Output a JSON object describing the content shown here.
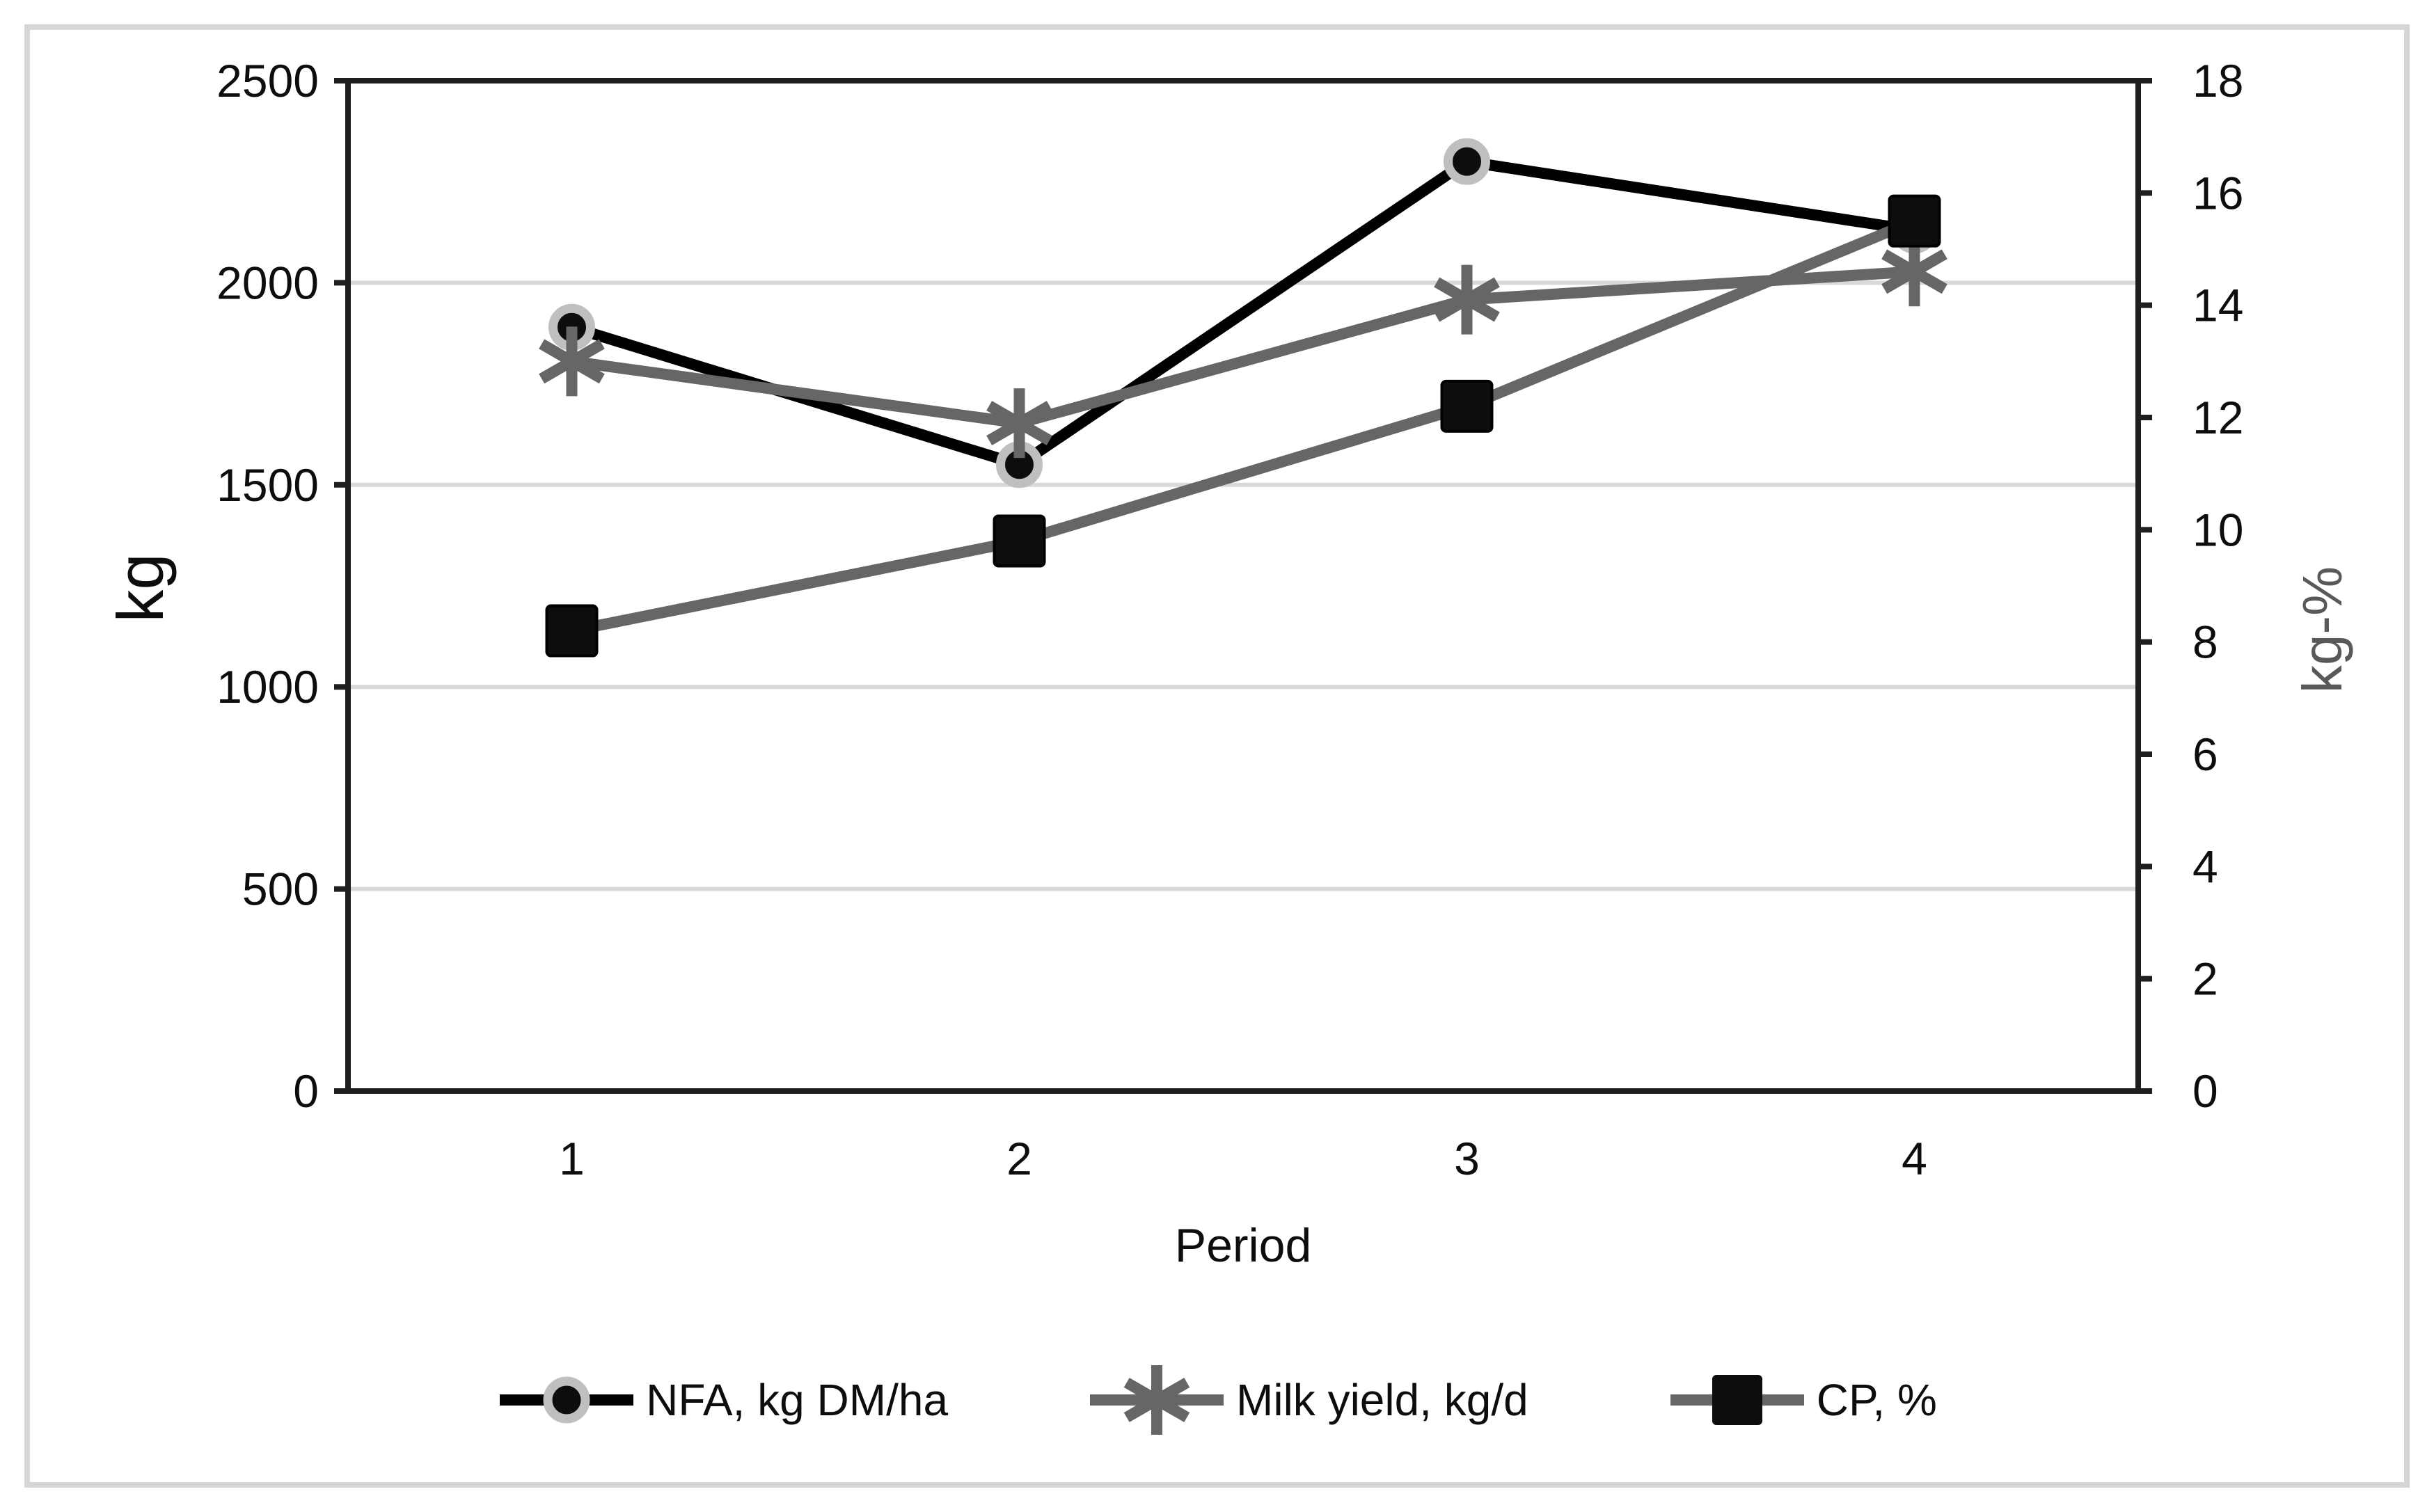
{
  "figure": {
    "background": "#ffffff",
    "outer_border_color": "#d6d6d6",
    "frame_color": "#1f1f1f",
    "gridline_color": "#d9d9d9",
    "text_color": "#0d0d0d",
    "secondary_text_color": "#595959"
  },
  "chart_data": {
    "type": "line",
    "title": "",
    "categories": [
      "1",
      "2",
      "3",
      "4"
    ],
    "x_axis": {
      "label": "Period"
    },
    "y_left": {
      "label": "kg",
      "min": 0,
      "max": 2500,
      "tick_step": 500,
      "ticks": [
        "0",
        "500",
        "1000",
        "1500",
        "2000",
        "2500"
      ]
    },
    "y_right": {
      "label": "kg-%",
      "min": 0,
      "max": 18,
      "tick_step": 2,
      "ticks": [
        "0",
        "2",
        "4",
        "6",
        "8",
        "10",
        "12",
        "14",
        "16",
        "18"
      ]
    },
    "grid": "horizontal-major-left-axis-only",
    "legend_position": "bottom-center",
    "series": [
      {
        "name": "NFA, kg DM/ha",
        "axis": "left",
        "values": [
          1890,
          1550,
          2300,
          2130
        ],
        "color": "#000000",
        "marker": "circle",
        "marker_fill": "#0d0d0d",
        "marker_ring": "#bfbfbf"
      },
      {
        "name": "Milk yield, kg/d",
        "axis": "right",
        "values": [
          13.0,
          11.9,
          14.1,
          14.6
        ],
        "color": "#666666",
        "marker": "asterisk",
        "marker_fill": "#666666"
      },
      {
        "name": "CP, %",
        "axis": "right",
        "values": [
          8.2,
          9.8,
          12.2,
          15.5
        ],
        "color": "#666666",
        "marker": "square",
        "marker_fill": "#0d0d0d"
      }
    ]
  }
}
